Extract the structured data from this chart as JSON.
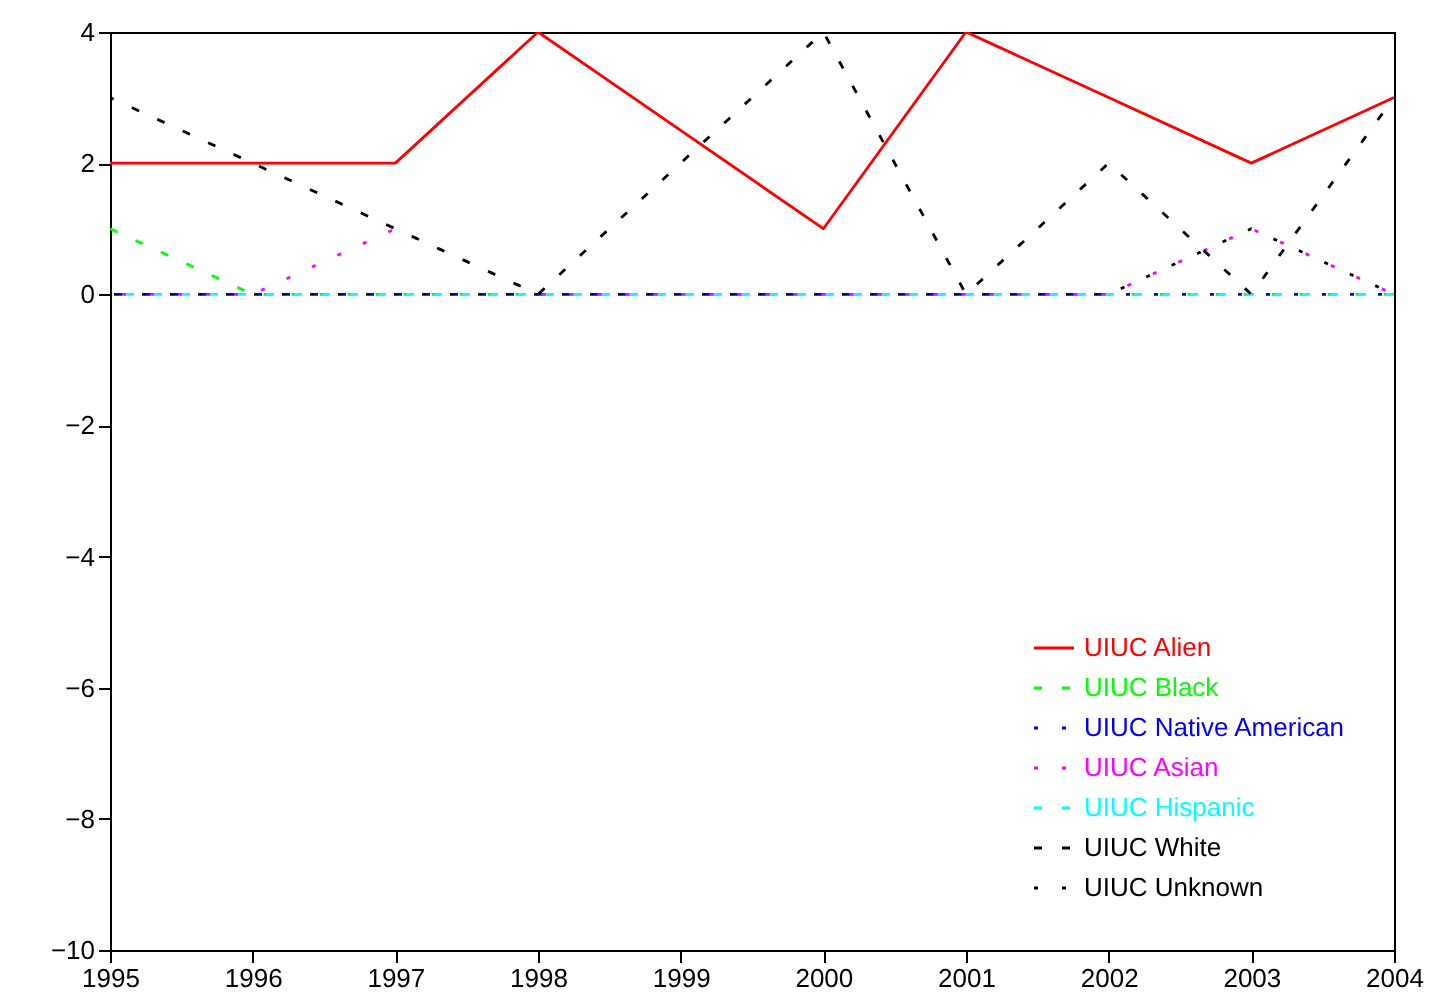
{
  "chart_data": {
    "type": "line",
    "x": [
      1995,
      1996,
      1997,
      1998,
      1999,
      2000,
      2001,
      2002,
      2003,
      2004
    ],
    "series": [
      {
        "name": "UIUC Alien",
        "color": "#ff0000",
        "line_style": "solid",
        "values": [
          2,
          2,
          2,
          4,
          2.5,
          1,
          4,
          3,
          2,
          3
        ]
      },
      {
        "name": "UIUC Black",
        "color": "#00ff00",
        "line_style": "dashed",
        "values": [
          1,
          0,
          0,
          0,
          0,
          0,
          0,
          0,
          0,
          0
        ]
      },
      {
        "name": "UIUC Native American",
        "color": "#0000ff",
        "line_style": "dotted",
        "values": [
          0,
          0,
          0,
          0,
          0,
          0,
          0,
          0,
          0,
          0
        ]
      },
      {
        "name": "UIUC Asian",
        "color": "#ff00ff",
        "line_style": "dotted",
        "values": [
          0,
          0,
          1,
          0,
          0,
          0,
          0,
          0,
          1,
          0
        ]
      },
      {
        "name": "UIUC Hispanic",
        "color": "#00ffff",
        "line_style": "dashed",
        "values": [
          0,
          0,
          0,
          0,
          0,
          0,
          0,
          0,
          0,
          0
        ]
      },
      {
        "name": "UIUC White",
        "color": "#000000",
        "line_style": "dashed",
        "values": [
          3,
          2,
          1,
          0,
          2,
          4,
          0,
          2,
          0,
          3
        ]
      },
      {
        "name": "UIUC Unknown",
        "color": "#000000",
        "line_style": "dotted",
        "values": [
          0,
          0,
          0,
          0,
          0,
          0,
          0,
          0,
          1,
          0
        ]
      }
    ],
    "xlim": [
      1995,
      2004
    ],
    "xticks": [
      1995,
      1996,
      1997,
      1998,
      1999,
      2000,
      2001,
      2002,
      2003,
      2004
    ],
    "ylim": [
      -10,
      4
    ],
    "yticks": [
      -10,
      -8,
      -6,
      -4,
      -2,
      0,
      2,
      4
    ],
    "grid": false,
    "legend": "bottom right",
    "marker": "none"
  }
}
